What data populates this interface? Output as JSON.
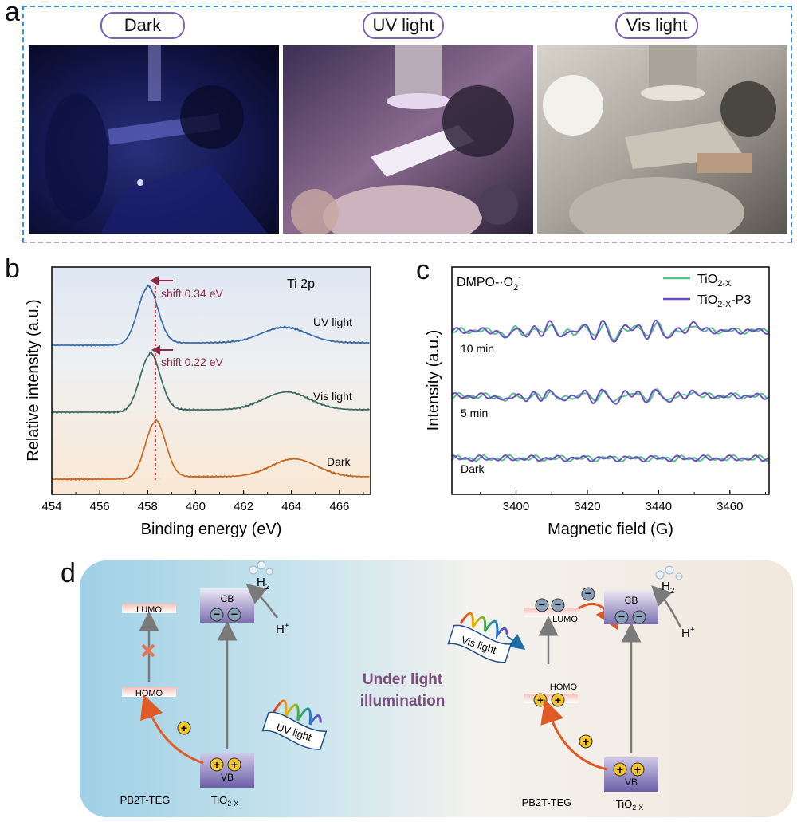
{
  "panel_a": {
    "letter": "a",
    "labels": [
      "Dark",
      "UV light",
      "Vis light"
    ]
  },
  "panel_b": {
    "letter": "b",
    "element": "Ti 2p",
    "shift_uv": "shift 0.34 eV",
    "shift_vis": "shift 0.22 eV",
    "traces": [
      "UV light",
      "Vis light",
      "Dark"
    ],
    "colors": {
      "uv": "#3a6fb0",
      "vis": "#3d6b66",
      "dark": "#d26a1e",
      "ref_line": "#d9343a",
      "arrow": "#8a2c44"
    }
  },
  "panel_c": {
    "letter": "c",
    "title_prefix": "DMPO-·O",
    "title_sub": "2",
    "title_sup": "-",
    "legend": [
      {
        "base": "TiO",
        "sub": "2-X",
        "suffix": "",
        "color": "#58c08f"
      },
      {
        "base": "TiO",
        "sub": "2-X",
        "suffix": "-P3",
        "color": "#6c4fbf"
      }
    ],
    "trace_labels": [
      "10 min",
      "5 min",
      "Dark"
    ]
  },
  "panel_d": {
    "letter": "d",
    "center_text_1": "Under light",
    "center_text_2": "illumination",
    "left": {
      "lumo": "LUMO",
      "homo": "HOMO",
      "cb": "CB",
      "vb": "VB",
      "h2": "H",
      "h2_sub": "2",
      "hplus": "H",
      "hplus_sup": "+",
      "light": "UV light",
      "material_1": "PB2T-TEG",
      "material_2_base": "TiO",
      "material_2_sub": "2-X"
    },
    "right": {
      "lumo": "LUMO",
      "homo": "HOMO",
      "cb": "CB",
      "vb": "VB",
      "h2": "H",
      "h2_sub": "2",
      "hplus": "H",
      "hplus_sup": "+",
      "light": "Vis light",
      "material_1": "PB2T-TEG",
      "material_2_base": "TiO",
      "material_2_sub": "2-X"
    }
  },
  "chart_data": [
    {
      "type": "line",
      "panel": "b",
      "xlabel": "Binding energy (eV)",
      "ylabel": "Relative intensity (a.u.)",
      "xlim": [
        454,
        467.3
      ],
      "xticks": [
        454,
        456,
        458,
        460,
        462,
        464,
        466
      ],
      "ref_line_x": 458.32,
      "series": [
        {
          "name": "UV light",
          "peak1": 458.0,
          "peak2": 463.7,
          "rel_peak1": 1.0,
          "rel_peak2": 0.27
        },
        {
          "name": "Vis light",
          "peak1": 458.1,
          "peak2": 463.8,
          "rel_peak1": 1.0,
          "rel_peak2": 0.31
        },
        {
          "name": "Dark",
          "peak1": 458.32,
          "peak2": 464.1,
          "rel_peak1": 1.0,
          "rel_peak2": 0.31
        }
      ]
    },
    {
      "type": "line",
      "panel": "c",
      "xlabel": "Magnetic field (G)",
      "ylabel": "Intensity (a.u.)",
      "xlim": [
        3382,
        3471
      ],
      "xticks": [
        3400,
        3420,
        3440,
        3460
      ],
      "series": [
        {
          "name": "TiO2-X",
          "groups": [
            "10 min",
            "5 min",
            "Dark"
          ]
        },
        {
          "name": "TiO2-X-P3",
          "groups": [
            "10 min",
            "5 min",
            "Dark"
          ]
        }
      ],
      "dmpo_signal_positions": [
        3399,
        3404,
        3408,
        3414,
        3418,
        3423,
        3429,
        3433,
        3438,
        3444,
        3448
      ]
    }
  ]
}
